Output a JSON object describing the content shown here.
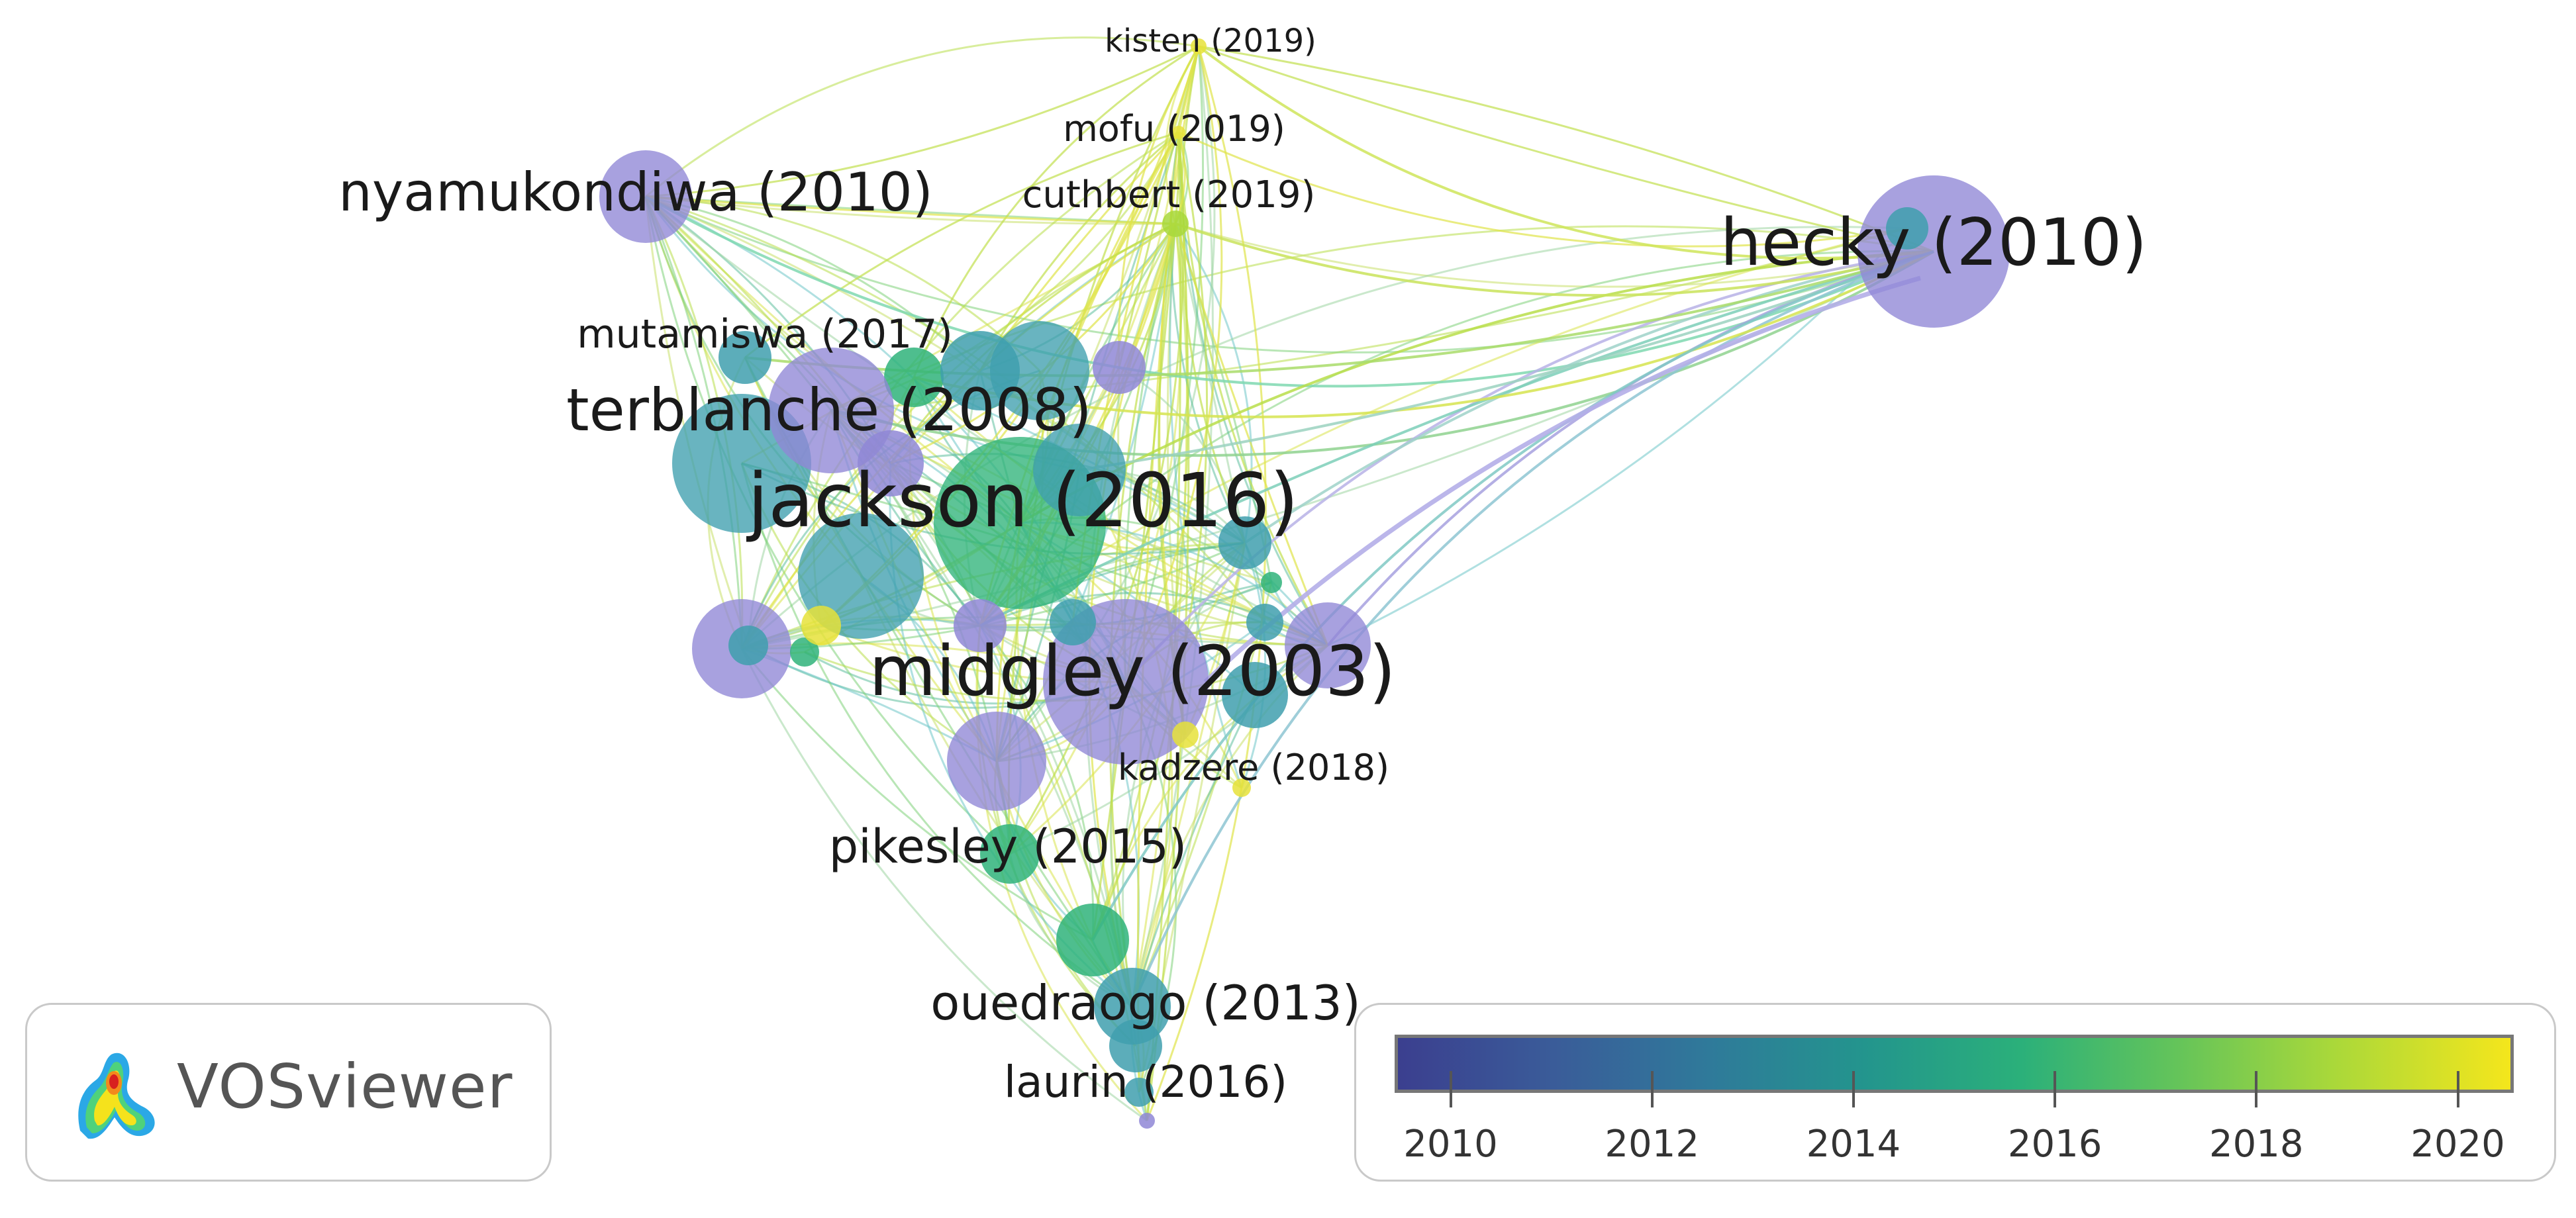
{
  "colors": {
    "purple": "#8f87d6",
    "teal": "#3f9fae",
    "green": "#2fb37a",
    "lime": "#a8d83b",
    "yellow": "#e6e23a"
  },
  "nodes": [
    {
      "id": "hecky",
      "label": "hecky (2010)",
      "year": 2010
    },
    {
      "id": "jackson",
      "label": "jackson (2016)",
      "year": 2016
    },
    {
      "id": "midgley",
      "label": "midgley (2003)",
      "year": 2003
    },
    {
      "id": "terblanche",
      "label": "terblanche (2008)",
      "year": 2008
    },
    {
      "id": "nyamukondiwa",
      "label": "nyamukondiwa (2010)",
      "year": 2010
    },
    {
      "id": "mutamiswa",
      "label": "mutamiswa (2017)",
      "year": 2017
    },
    {
      "id": "kisten",
      "label": "kisten (2019)",
      "year": 2019
    },
    {
      "id": "mofu",
      "label": "mofu (2019)",
      "year": 2019
    },
    {
      "id": "cuthbert",
      "label": "cuthbert (2019)",
      "year": 2019
    },
    {
      "id": "kadzere",
      "label": "kadzere (2018)",
      "year": 2018
    },
    {
      "id": "pikesley",
      "label": "pikesley (2015)",
      "year": 2015
    },
    {
      "id": "ouedraogo",
      "label": "ouedraogo (2013)",
      "year": 2013
    },
    {
      "id": "laurin",
      "label": "laurin (2016)",
      "year": 2016
    }
  ],
  "logo": {
    "name": "VOSviewer",
    "icon": "vosviewer-heatmap-icon"
  },
  "legend": {
    "ticks": [
      "2010",
      "2012",
      "2014",
      "2016",
      "2018",
      "2020"
    ],
    "tick_positions": [
      0.05,
      0.23,
      0.41,
      0.59,
      0.77,
      0.95
    ]
  }
}
